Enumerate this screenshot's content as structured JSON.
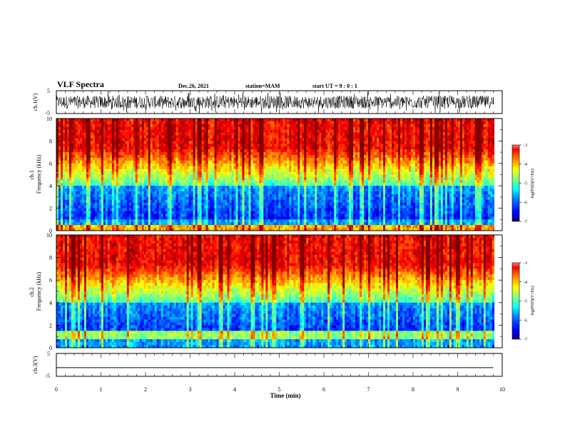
{
  "header": {
    "title": "VLF Spectra",
    "date": "Dec.26, 2021",
    "station": "station=MAM",
    "start": "start UT =  9 : 0 : 1"
  },
  "colors": {
    "colormap": [
      "#000080",
      "#0000ff",
      "#0080ff",
      "#00ffff",
      "#80ff80",
      "#ffff00",
      "#ff8000",
      "#ff0000",
      "#800000"
    ]
  },
  "chart_data": [
    {
      "type": "line",
      "panel": "waveform-ch1",
      "ylabel": "ch.1(V)",
      "ytick_labels": [
        "5",
        "-5"
      ],
      "ylim": [
        -5,
        5
      ],
      "xlim": [
        0,
        10
      ]
    },
    {
      "type": "heatmap",
      "panel": "spectrogram-ch1",
      "ylabel": "ch.1 Frequency (kHz)",
      "ylim": [
        0,
        10
      ],
      "ytick_labels": [
        "0",
        "2",
        "4",
        "6",
        "8",
        "10"
      ],
      "xlim": [
        0,
        9.8
      ],
      "colorbar": {
        "label": "log(PSD)(V²/Hz)",
        "range": [
          -7,
          -3
        ],
        "tick_labels": [
          "-3",
          "-4",
          "-5",
          "-6",
          "-7"
        ]
      }
    },
    {
      "type": "heatmap",
      "panel": "spectrogram-ch2",
      "ylabel": "ch.2 Frequency (kHz)",
      "ylim": [
        0,
        10
      ],
      "ytick_labels": [
        "0",
        "2",
        "4",
        "6",
        "8",
        "10"
      ],
      "xlim": [
        0,
        9.8
      ],
      "colorbar": {
        "label": "log(PSD)(V²/Hz)",
        "range": [
          -7,
          -3
        ],
        "tick_labels": [
          "-3",
          "-4",
          "-5",
          "-6",
          "-7"
        ]
      }
    },
    {
      "type": "line",
      "panel": "waveform-ch3",
      "ylabel": "ch.3(V)",
      "ytick_labels": [
        "5",
        "-5"
      ],
      "ylim": [
        -5,
        5
      ],
      "x": [
        0,
        9.8
      ],
      "y": [
        -1.2,
        -1.2
      ],
      "xlim": [
        0,
        10
      ]
    }
  ],
  "xaxis": {
    "label": "Time (min)",
    "tick_labels": [
      "0",
      "1",
      "2",
      "3",
      "4",
      "5",
      "6",
      "7",
      "8",
      "9",
      "10"
    ],
    "xlim": [
      0,
      10
    ]
  }
}
